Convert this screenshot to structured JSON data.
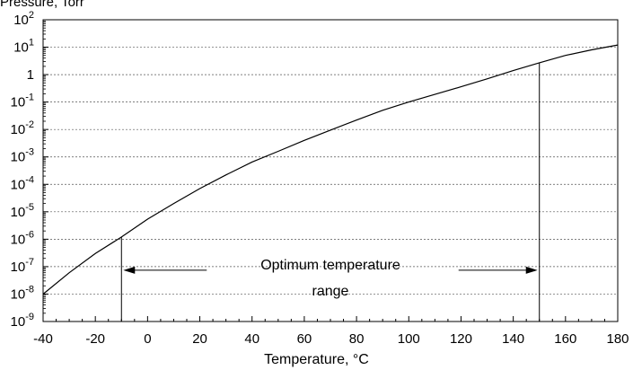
{
  "chart_data": {
    "type": "line",
    "title": "",
    "ylabel": "Pressure, Torr",
    "xlabel": "Temperature, °C",
    "y_scale": "log",
    "xlim": [
      -40,
      180
    ],
    "ylim_exponents": [
      -9,
      2
    ],
    "x_ticks": [
      "-40",
      "-20",
      "0",
      "20",
      "40",
      "60",
      "80",
      "100",
      "120",
      "140",
      "160",
      "180"
    ],
    "y_ticks": [
      {
        "base": "10",
        "exp": "2"
      },
      {
        "base": "10",
        "exp": "1"
      },
      {
        "base": "1",
        "exp": ""
      },
      {
        "base": "10",
        "exp": "-1"
      },
      {
        "base": "10",
        "exp": "-2"
      },
      {
        "base": "10",
        "exp": "-3"
      },
      {
        "base": "10",
        "exp": "-4"
      },
      {
        "base": "10",
        "exp": "-5"
      },
      {
        "base": "10",
        "exp": "-6"
      },
      {
        "base": "10",
        "exp": "-7"
      },
      {
        "base": "10",
        "exp": "-8"
      },
      {
        "base": "10",
        "exp": "-9"
      }
    ],
    "grid": "horizontal-dashed",
    "series": [
      {
        "x": [
          -40,
          -30,
          -20,
          -10,
          0,
          10,
          20,
          30,
          40,
          50,
          60,
          70,
          80,
          90,
          100,
          110,
          120,
          130,
          140,
          150,
          160,
          170,
          180
        ],
        "y": [
          1e-08,
          6e-08,
          3e-07,
          1.2e-06,
          5.4e-06,
          2e-05,
          7e-05,
          0.00022,
          0.00065,
          0.0016,
          0.004,
          0.0095,
          0.022,
          0.05,
          0.1,
          0.19,
          0.36,
          0.7,
          1.4,
          2.7,
          5,
          8,
          12
        ]
      }
    ],
    "markers": [
      -10,
      150
    ],
    "annotation": {
      "line1": "Optimum temperature",
      "line2": "range",
      "x_from": -10,
      "x_to": 150
    }
  }
}
